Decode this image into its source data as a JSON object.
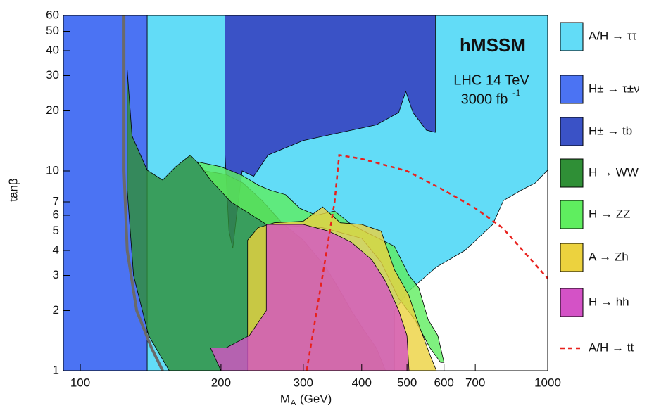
{
  "chart_data": {
    "type": "area",
    "xlabel": "M",
    "xlabel_sub": "A",
    "xlabel_unit": "(GeV)",
    "ylabel": "tanβ",
    "xscale": "log",
    "yscale": "log",
    "xlim": [
      92,
      1000
    ],
    "ylim": [
      1,
      60
    ],
    "xticks": [
      100,
      200,
      300,
      400,
      500,
      600,
      700,
      1000
    ],
    "yticks": [
      1,
      2,
      3,
      4,
      5,
      6,
      7,
      10,
      20,
      30,
      40,
      50,
      60
    ],
    "annotations": [
      "hMSSM",
      "LHC 14 TeV",
      "3000 fb",
      "-1"
    ],
    "series": [
      {
        "name": "A/H → ττ",
        "color": "#62dcf7",
        "x": [
          139,
          1000,
          1000,
          940,
          877,
          804,
          763,
          665,
          578,
          504,
          470,
          470,
          139
        ],
        "y": [
          60,
          60,
          10.1,
          8.7,
          8.0,
          7.1,
          5.4,
          4.0,
          3.3,
          2.5,
          2.0,
          1,
          1
        ]
      },
      {
        "name": "H± → τ±ν",
        "color": "#4b73f3",
        "x": [
          92,
          139,
          139,
          92
        ],
        "y": [
          60,
          60,
          1,
          1
        ]
      },
      {
        "name": "H± → tb",
        "color": "#3a52c6",
        "x": [
          204,
          204,
          208,
          212,
          216,
          222,
          235,
          252,
          300,
          430,
          480,
          497,
          515,
          550,
          575,
          575
        ],
        "y": [
          60,
          12,
          5,
          4.1,
          6,
          10,
          9.4,
          12.0,
          14.2,
          17,
          19.6,
          25,
          19.6,
          16,
          15.6,
          60
        ]
      },
      {
        "name": "H → WW",
        "color": "#2f8f36",
        "x": [
          126,
          129,
          139,
          150,
          160,
          172,
          185,
          205,
          223,
          245,
          270,
          300,
          335,
          360,
          380,
          404,
          430,
          450,
          155,
          140,
          130,
          126
        ],
        "y": [
          32,
          15,
          10.1,
          9,
          10.5,
          12,
          10,
          9.6,
          8.7,
          7.1,
          5.5,
          4.5,
          3.3,
          2.5,
          2.0,
          1.6,
          1.3,
          1,
          1,
          1.5,
          3,
          8
        ]
      },
      {
        "name": "H → ZZ",
        "color": "#5fee5f",
        "x": [
          178,
          200,
          222,
          240,
          255,
          275,
          295,
          320,
          350,
          380,
          404,
          470,
          505,
          530,
          555,
          582,
          600,
          590,
          560,
          520,
          480,
          440,
          400,
          330,
          250,
          210,
          190
        ],
        "y": [
          11.1,
          10.5,
          9.5,
          8.5,
          8.0,
          7.6,
          6.5,
          6.0,
          6.3,
          5.4,
          5.0,
          4.2,
          3.0,
          2.6,
          1.8,
          1.5,
          1.1,
          1.1,
          1.3,
          1.8,
          2.3,
          3.5,
          4.6,
          5.2,
          5.4,
          7,
          9
        ]
      },
      {
        "name": "A → Zh",
        "color": "#ecd23e",
        "x": [
          228,
          228,
          240,
          260,
          300,
          330,
          360,
          400,
          440,
          470,
          504,
          530,
          560,
          578
        ],
        "y": [
          1,
          4.5,
          5.2,
          5.5,
          5.6,
          6.6,
          5.5,
          5.4,
          5.0,
          3.2,
          2.4,
          1.7,
          1.2,
          1
        ]
      },
      {
        "name": "H → hh",
        "color": "#d452c6",
        "x": [
          250,
          300,
          340,
          380,
          420,
          450,
          480,
          500,
          505,
          200,
          190,
          205,
          230,
          250
        ],
        "y": [
          5.4,
          5.4,
          5.0,
          4.4,
          3.6,
          2.8,
          2.0,
          1.5,
          1,
          1,
          1.3,
          1.3,
          1.5,
          2.0
        ]
      },
      {
        "name": "A/H → tt",
        "color": "#e8211d",
        "style": "dashed",
        "x": [
          305,
          330,
          350,
          358,
          400,
          500,
          600,
          700,
          800,
          1000
        ],
        "y": [
          1,
          3,
          7,
          12,
          11.5,
          10,
          8,
          6.5,
          5.2,
          2.9
        ]
      }
    ],
    "boundary": {
      "color": "#6a6a6a",
      "x": [
        124,
        124,
        126,
        132,
        142,
        150
      ],
      "y": [
        60,
        10,
        4,
        2,
        1.3,
        1
      ]
    }
  }
}
